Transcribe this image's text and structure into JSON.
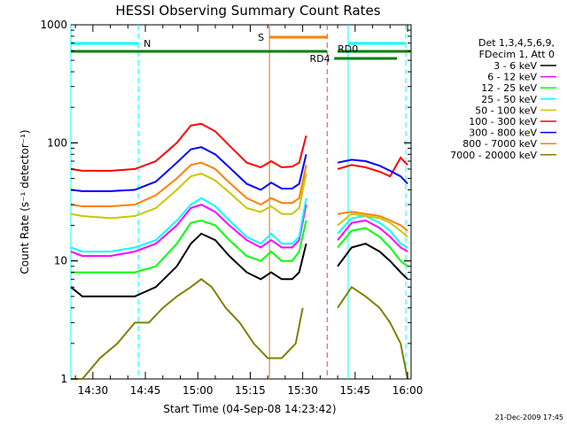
{
  "chart_data": {
    "type": "line",
    "title": "HESSI Observing Summary Count Rates",
    "xlabel": "Start Time (04-Sep-08 14:23:42)",
    "ylabel": "Count Rate (s⁻¹ detector⁻¹)",
    "x_ticks": [
      "14:30",
      "14:45",
      "15:00",
      "15:15",
      "15:30",
      "15:45",
      "16:00"
    ],
    "y_ticks": [
      "1",
      "10",
      "100",
      "1000"
    ],
    "xlim": [
      "14:23:42",
      "16:01:00"
    ],
    "ylim": [
      1,
      1000
    ],
    "y_scale": "log",
    "legend_header": [
      "Det 1,3,4,5,6,9,",
      "FDecim 1, Att 0"
    ],
    "footer_date": "21-Dec-2009 17:45",
    "series": [
      {
        "name": "3 - 6 keV",
        "color": "#000000",
        "x": [
          "14:23",
          "14:27",
          "14:35",
          "14:42",
          "14:48",
          "14:54",
          "14:58",
          "15:01",
          "15:05",
          "15:09",
          "15:14",
          "15:18",
          "15:21",
          "15:24",
          "15:27",
          "15:29",
          "15:31",
          "15:40",
          "15:44",
          "15:48",
          "15:52",
          "15:55",
          "15:58",
          "16:00"
        ],
        "y": [
          6,
          5,
          5,
          5,
          6,
          9,
          14,
          17,
          15,
          11,
          8,
          7,
          8,
          7,
          7,
          8,
          14,
          9,
          13,
          14,
          12,
          10,
          8,
          7
        ]
      },
      {
        "name": "6 - 12 keV",
        "color": "#ff00ff",
        "x": [
          "14:23",
          "14:27",
          "14:35",
          "14:42",
          "14:48",
          "14:54",
          "14:58",
          "15:01",
          "15:05",
          "15:09",
          "15:14",
          "15:18",
          "15:21",
          "15:24",
          "15:27",
          "15:29",
          "15:31",
          "15:40",
          "15:44",
          "15:48",
          "15:52",
          "15:55",
          "15:58",
          "16:00"
        ],
        "y": [
          12,
          11,
          11,
          12,
          14,
          20,
          28,
          30,
          26,
          20,
          15,
          13,
          15,
          13,
          13,
          15,
          30,
          15,
          21,
          22,
          19,
          16,
          13,
          12
        ]
      },
      {
        "name": "12 - 25 keV",
        "color": "#00ff00",
        "x": [
          "14:23",
          "14:27",
          "14:35",
          "14:42",
          "14:48",
          "14:54",
          "14:58",
          "15:01",
          "15:05",
          "15:09",
          "15:14",
          "15:18",
          "15:21",
          "15:24",
          "15:27",
          "15:29",
          "15:31",
          "15:40",
          "15:44",
          "15:48",
          "15:52",
          "15:55",
          "15:58",
          "16:00"
        ],
        "y": [
          8,
          8,
          8,
          8,
          9,
          14,
          21,
          22,
          20,
          15,
          11,
          10,
          12,
          10,
          10,
          12,
          22,
          13,
          18,
          19,
          16,
          13,
          10,
          9
        ]
      },
      {
        "name": "25 - 50 keV",
        "color": "#00ffff",
        "x": [
          "14:23",
          "14:27",
          "14:35",
          "14:42",
          "14:48",
          "14:54",
          "14:58",
          "15:01",
          "15:05",
          "15:09",
          "15:14",
          "15:18",
          "15:21",
          "15:24",
          "15:27",
          "15:29",
          "15:31",
          "15:40",
          "15:44",
          "15:48",
          "15:52",
          "15:55",
          "15:58",
          "16:00"
        ],
        "y": [
          13,
          12,
          12,
          13,
          15,
          22,
          30,
          34,
          29,
          22,
          16,
          14,
          17,
          14,
          14,
          16,
          34,
          17,
          23,
          24,
          21,
          18,
          14,
          13
        ]
      },
      {
        "name": "50 - 100 keV",
        "color": "#c8c800",
        "x": [
          "14:23",
          "14:27",
          "14:35",
          "14:42",
          "14:48",
          "14:54",
          "14:58",
          "15:01",
          "15:05",
          "15:09",
          "15:14",
          "15:18",
          "15:21",
          "15:24",
          "15:27",
          "15:29",
          "15:31",
          "15:40",
          "15:44",
          "15:48",
          "15:52",
          "15:55",
          "15:58",
          "16:00"
        ],
        "y": [
          25,
          24,
          23,
          24,
          28,
          40,
          52,
          55,
          48,
          38,
          28,
          26,
          29,
          25,
          25,
          28,
          55,
          20,
          25,
          24,
          23,
          21,
          18,
          16
        ]
      },
      {
        "name": "100 - 300 keV",
        "color": "#ff0000",
        "x": [
          "14:23",
          "14:27",
          "14:35",
          "14:42",
          "14:48",
          "14:54",
          "14:58",
          "15:01",
          "15:05",
          "15:09",
          "15:14",
          "15:18",
          "15:21",
          "15:24",
          "15:27",
          "15:29",
          "15:31",
          "15:40",
          "15:44",
          "15:48",
          "15:52",
          "15:55",
          "15:58",
          "16:00"
        ],
        "y": [
          60,
          58,
          58,
          60,
          70,
          100,
          140,
          145,
          125,
          95,
          68,
          62,
          70,
          62,
          63,
          68,
          115,
          60,
          65,
          62,
          57,
          52,
          75,
          65
        ]
      },
      {
        "name": "300 - 800 keV",
        "color": "#0000ff",
        "x": [
          "14:23",
          "14:27",
          "14:35",
          "14:42",
          "14:48",
          "14:54",
          "14:58",
          "15:01",
          "15:05",
          "15:09",
          "15:14",
          "15:18",
          "15:21",
          "15:24",
          "15:27",
          "15:29",
          "15:31",
          "15:40",
          "15:44",
          "15:48",
          "15:52",
          "15:55",
          "15:58",
          "16:00"
        ],
        "y": [
          40,
          39,
          39,
          40,
          47,
          68,
          88,
          92,
          80,
          62,
          45,
          40,
          46,
          41,
          41,
          45,
          80,
          68,
          72,
          70,
          64,
          58,
          52,
          45
        ]
      },
      {
        "name": "800 - 7000 keV",
        "color": "#ff8000",
        "x": [
          "14:23",
          "14:27",
          "14:35",
          "14:42",
          "14:48",
          "14:54",
          "14:58",
          "15:01",
          "15:05",
          "15:09",
          "15:14",
          "15:18",
          "15:21",
          "15:24",
          "15:27",
          "15:29",
          "15:31",
          "15:40",
          "15:44",
          "15:48",
          "15:52",
          "15:55",
          "15:58",
          "16:00"
        ],
        "y": [
          30,
          29,
          29,
          30,
          36,
          50,
          65,
          68,
          60,
          46,
          34,
          30,
          34,
          31,
          31,
          34,
          65,
          25,
          26,
          25,
          24,
          22,
          20,
          18
        ]
      },
      {
        "name": "7000 - 20000 keV",
        "color": "#808000",
        "x": [
          "14:23",
          "14:27",
          "14:32",
          "14:37",
          "14:42",
          "14:46",
          "14:50",
          "14:54",
          "14:58",
          "15:01",
          "15:04",
          "15:08",
          "15:12",
          "15:16",
          "15:20",
          "15:24",
          "15:28",
          "15:30",
          "15:40",
          "15:44",
          "15:48",
          "15:52",
          "15:55",
          "15:58",
          "16:00"
        ],
        "y": [
          1,
          1,
          1.5,
          2,
          3,
          3,
          4,
          5,
          6,
          7,
          6,
          4,
          3,
          2,
          1.5,
          1.5,
          2,
          4,
          4,
          6,
          5,
          4,
          3,
          2,
          1
        ]
      }
    ],
    "overlays": {
      "night_label": "N",
      "saa_label": "S",
      "rd0_label": "RD0",
      "rd4_label": "RD4",
      "night_color": "#00ffff",
      "saa_color": "#ff8000",
      "rd_color": "#008000"
    }
  }
}
